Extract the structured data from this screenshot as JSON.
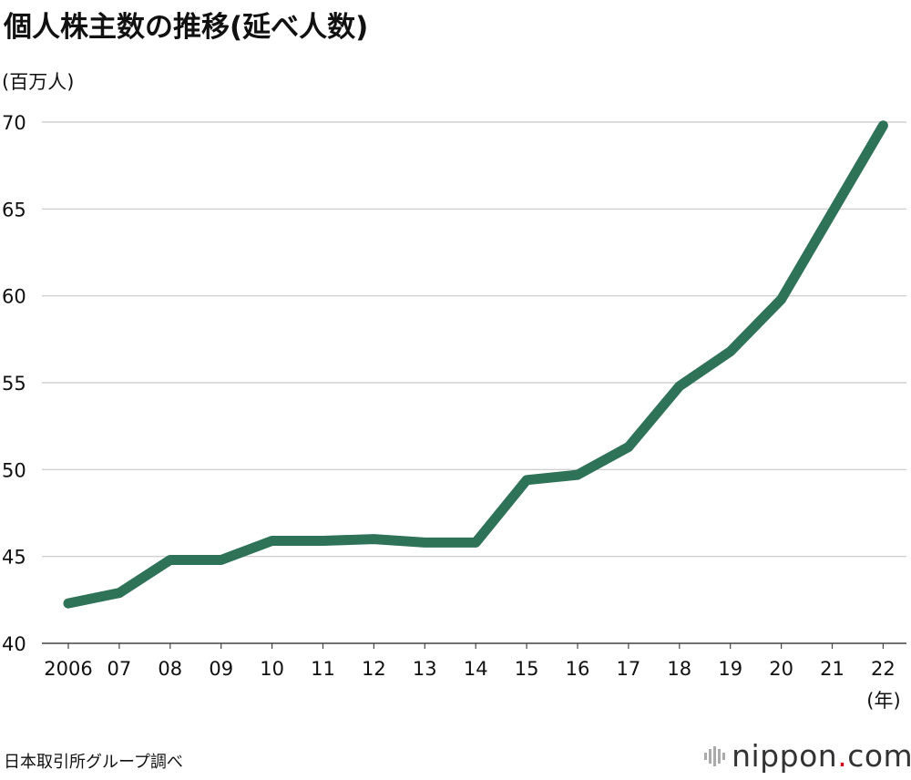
{
  "title": "個人株主数の推移(延べ人数)",
  "source": "日本取引所グループ調べ",
  "brand": {
    "prefix": "nippon",
    "dot": ".",
    "suffix": "com"
  },
  "colors": {
    "line": "#2e7358",
    "grid": "#c8c8c8",
    "brand_dot": "#d0021b"
  },
  "chart_data": {
    "type": "line",
    "title": "個人株主数の推移(延べ人数)",
    "ylabel": "(百万人)",
    "xlabel": "(年)",
    "ylim": [
      40,
      70
    ],
    "yticks": [
      "40",
      "45",
      "50",
      "55",
      "60",
      "65",
      "70"
    ],
    "categories": [
      "2006",
      "07",
      "08",
      "09",
      "10",
      "11",
      "12",
      "13",
      "14",
      "15",
      "16",
      "17",
      "18",
      "19",
      "20",
      "21",
      "22"
    ],
    "values": [
      42.3,
      42.9,
      44.8,
      44.8,
      45.9,
      45.9,
      46.0,
      45.8,
      45.8,
      49.4,
      49.7,
      51.3,
      54.8,
      56.8,
      59.8,
      64.8,
      69.8
    ],
    "grid": true
  }
}
